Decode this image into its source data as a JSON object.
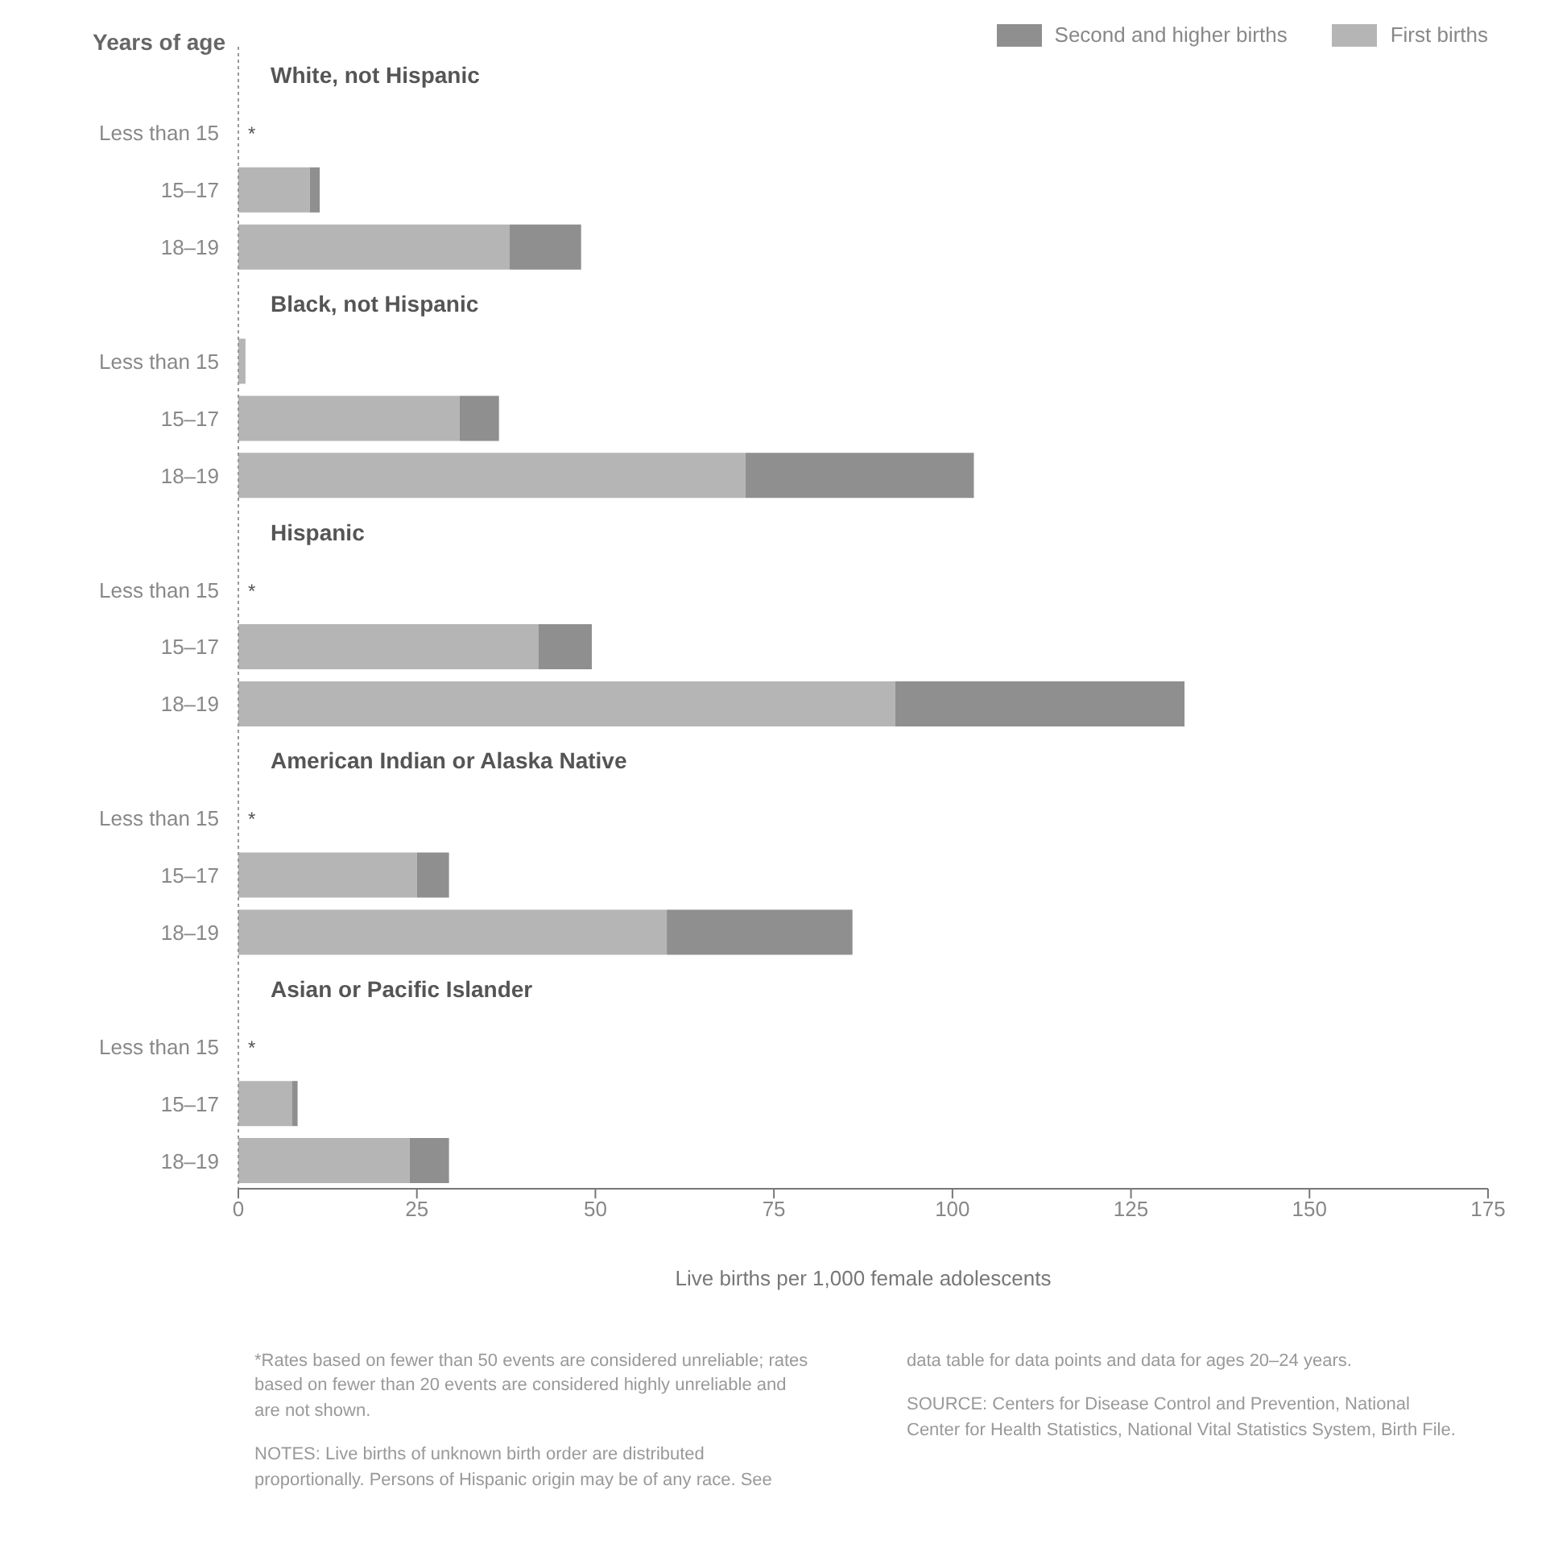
{
  "chart_data": {
    "type": "bar",
    "orientation": "horizontal",
    "stacked": true,
    "ylabel": "Years of age",
    "xlabel": "Live births per 1,000 female adolescents",
    "categories": [
      "White, not Hispanic",
      "Less than 15",
      "15–17",
      "18–19",
      "Black, not Hispanic",
      "Less than 15",
      "15–17",
      "18–19",
      "Hispanic",
      "Less than 15",
      "15–17",
      "18–19",
      "American Indian or Alaska Native",
      "Less than 15",
      "15–17",
      "18–19",
      "Asian or Pacific Islander",
      "Less than 15",
      "15–17",
      "18–19"
    ],
    "series": [
      {
        "name": "First births",
        "color": "#b5b5b5",
        "values": [
          null,
          null,
          10,
          38,
          null,
          1,
          31,
          71,
          null,
          null,
          42,
          92,
          null,
          null,
          25,
          60,
          null,
          null,
          7.5,
          24
        ],
        "value_labels": [
          null,
          "*",
          null,
          null,
          null,
          null,
          null,
          null,
          null,
          "*",
          null,
          null,
          null,
          "*",
          null,
          null,
          null,
          "*",
          null,
          null
        ]
      },
      {
        "name": "Second and higher births",
        "color": "#8f8f8f",
        "values": [
          null,
          null,
          1.4,
          10,
          null,
          null,
          5.5,
          32,
          null,
          null,
          7.5,
          40.5,
          null,
          null,
          4.5,
          26,
          null,
          null,
          0.8,
          5.5
        ]
      }
    ],
    "xlim": [
      0,
      175
    ],
    "xticks": [
      0,
      25,
      50,
      75,
      100,
      125,
      150,
      175
    ],
    "legend": "top right",
    "annotations": [
      "*Rates based on fewer than 50 events are considered unreliable; rates based on fewer than 20 events are considered highly unreliable and are not shown.",
      "NOTES: Live births of unknown birth order are distributed proportionally. Persons of Hispanic origin may be of any race. See data table for data points and data for ages 20–24 years.",
      "SOURCE: Centers for Disease Control and Prevention, National Center for Health Statistics, National Vital Statistics System, Birth File."
    ]
  }
}
